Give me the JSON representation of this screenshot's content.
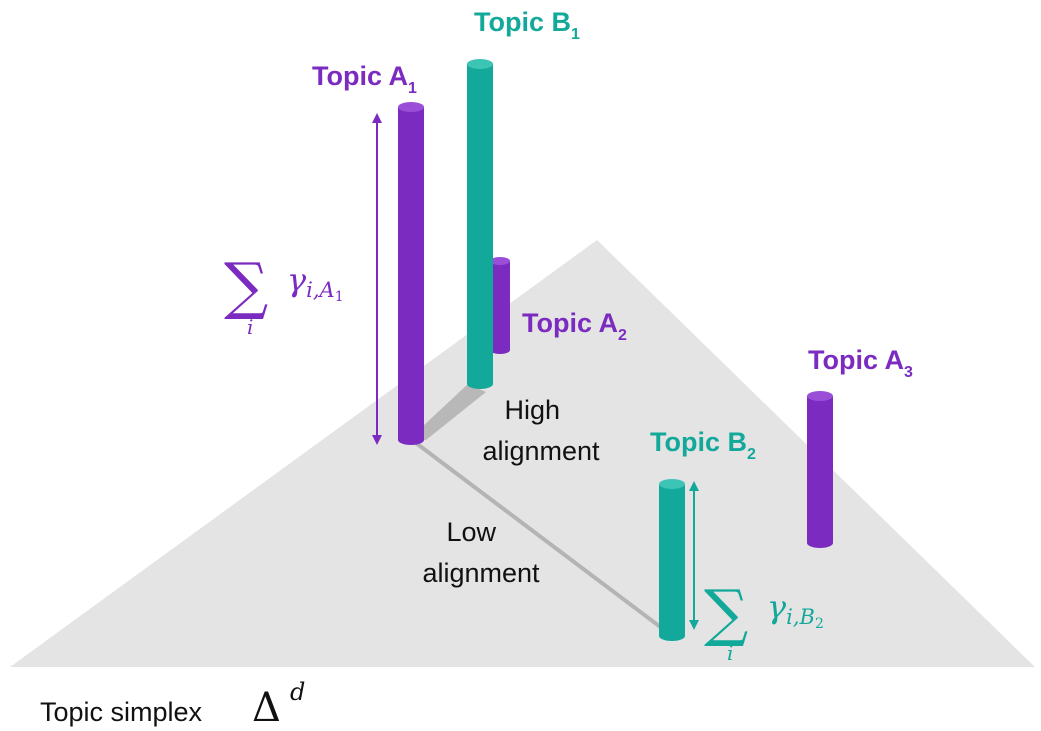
{
  "colors": {
    "topic_a": "#7b2bbf",
    "topic_b": "#13a99a",
    "simplex_fill": "#e4e4e4",
    "connector": "#b4b4b4",
    "text": "#111111"
  },
  "simplex": {
    "caption": "Topic simplex",
    "symbol": "Δ",
    "superscript": "d"
  },
  "topics": {
    "a1": {
      "name": "Topic A",
      "index": "1"
    },
    "a2": {
      "name": "Topic A",
      "index": "2"
    },
    "a3": {
      "name": "Topic A",
      "index": "3"
    },
    "b1": {
      "name": "Topic B",
      "index": "1"
    },
    "b2": {
      "name": "Topic B",
      "index": "2"
    }
  },
  "alignment": {
    "high_line1": "High",
    "high_line2": "alignment",
    "low_line1": "Low",
    "low_line2": "alignment"
  },
  "formulas": {
    "a1": {
      "sum": "∑",
      "gamma": "γ",
      "subscript_prefix": "i,",
      "subscript_var": "A",
      "subscript_index": "1",
      "index_var": "i"
    },
    "b2": {
      "sum": "∑",
      "gamma": "γ",
      "subscript_prefix": "i,",
      "subscript_var": "B",
      "subscript_index": "2",
      "index_var": "i"
    }
  }
}
